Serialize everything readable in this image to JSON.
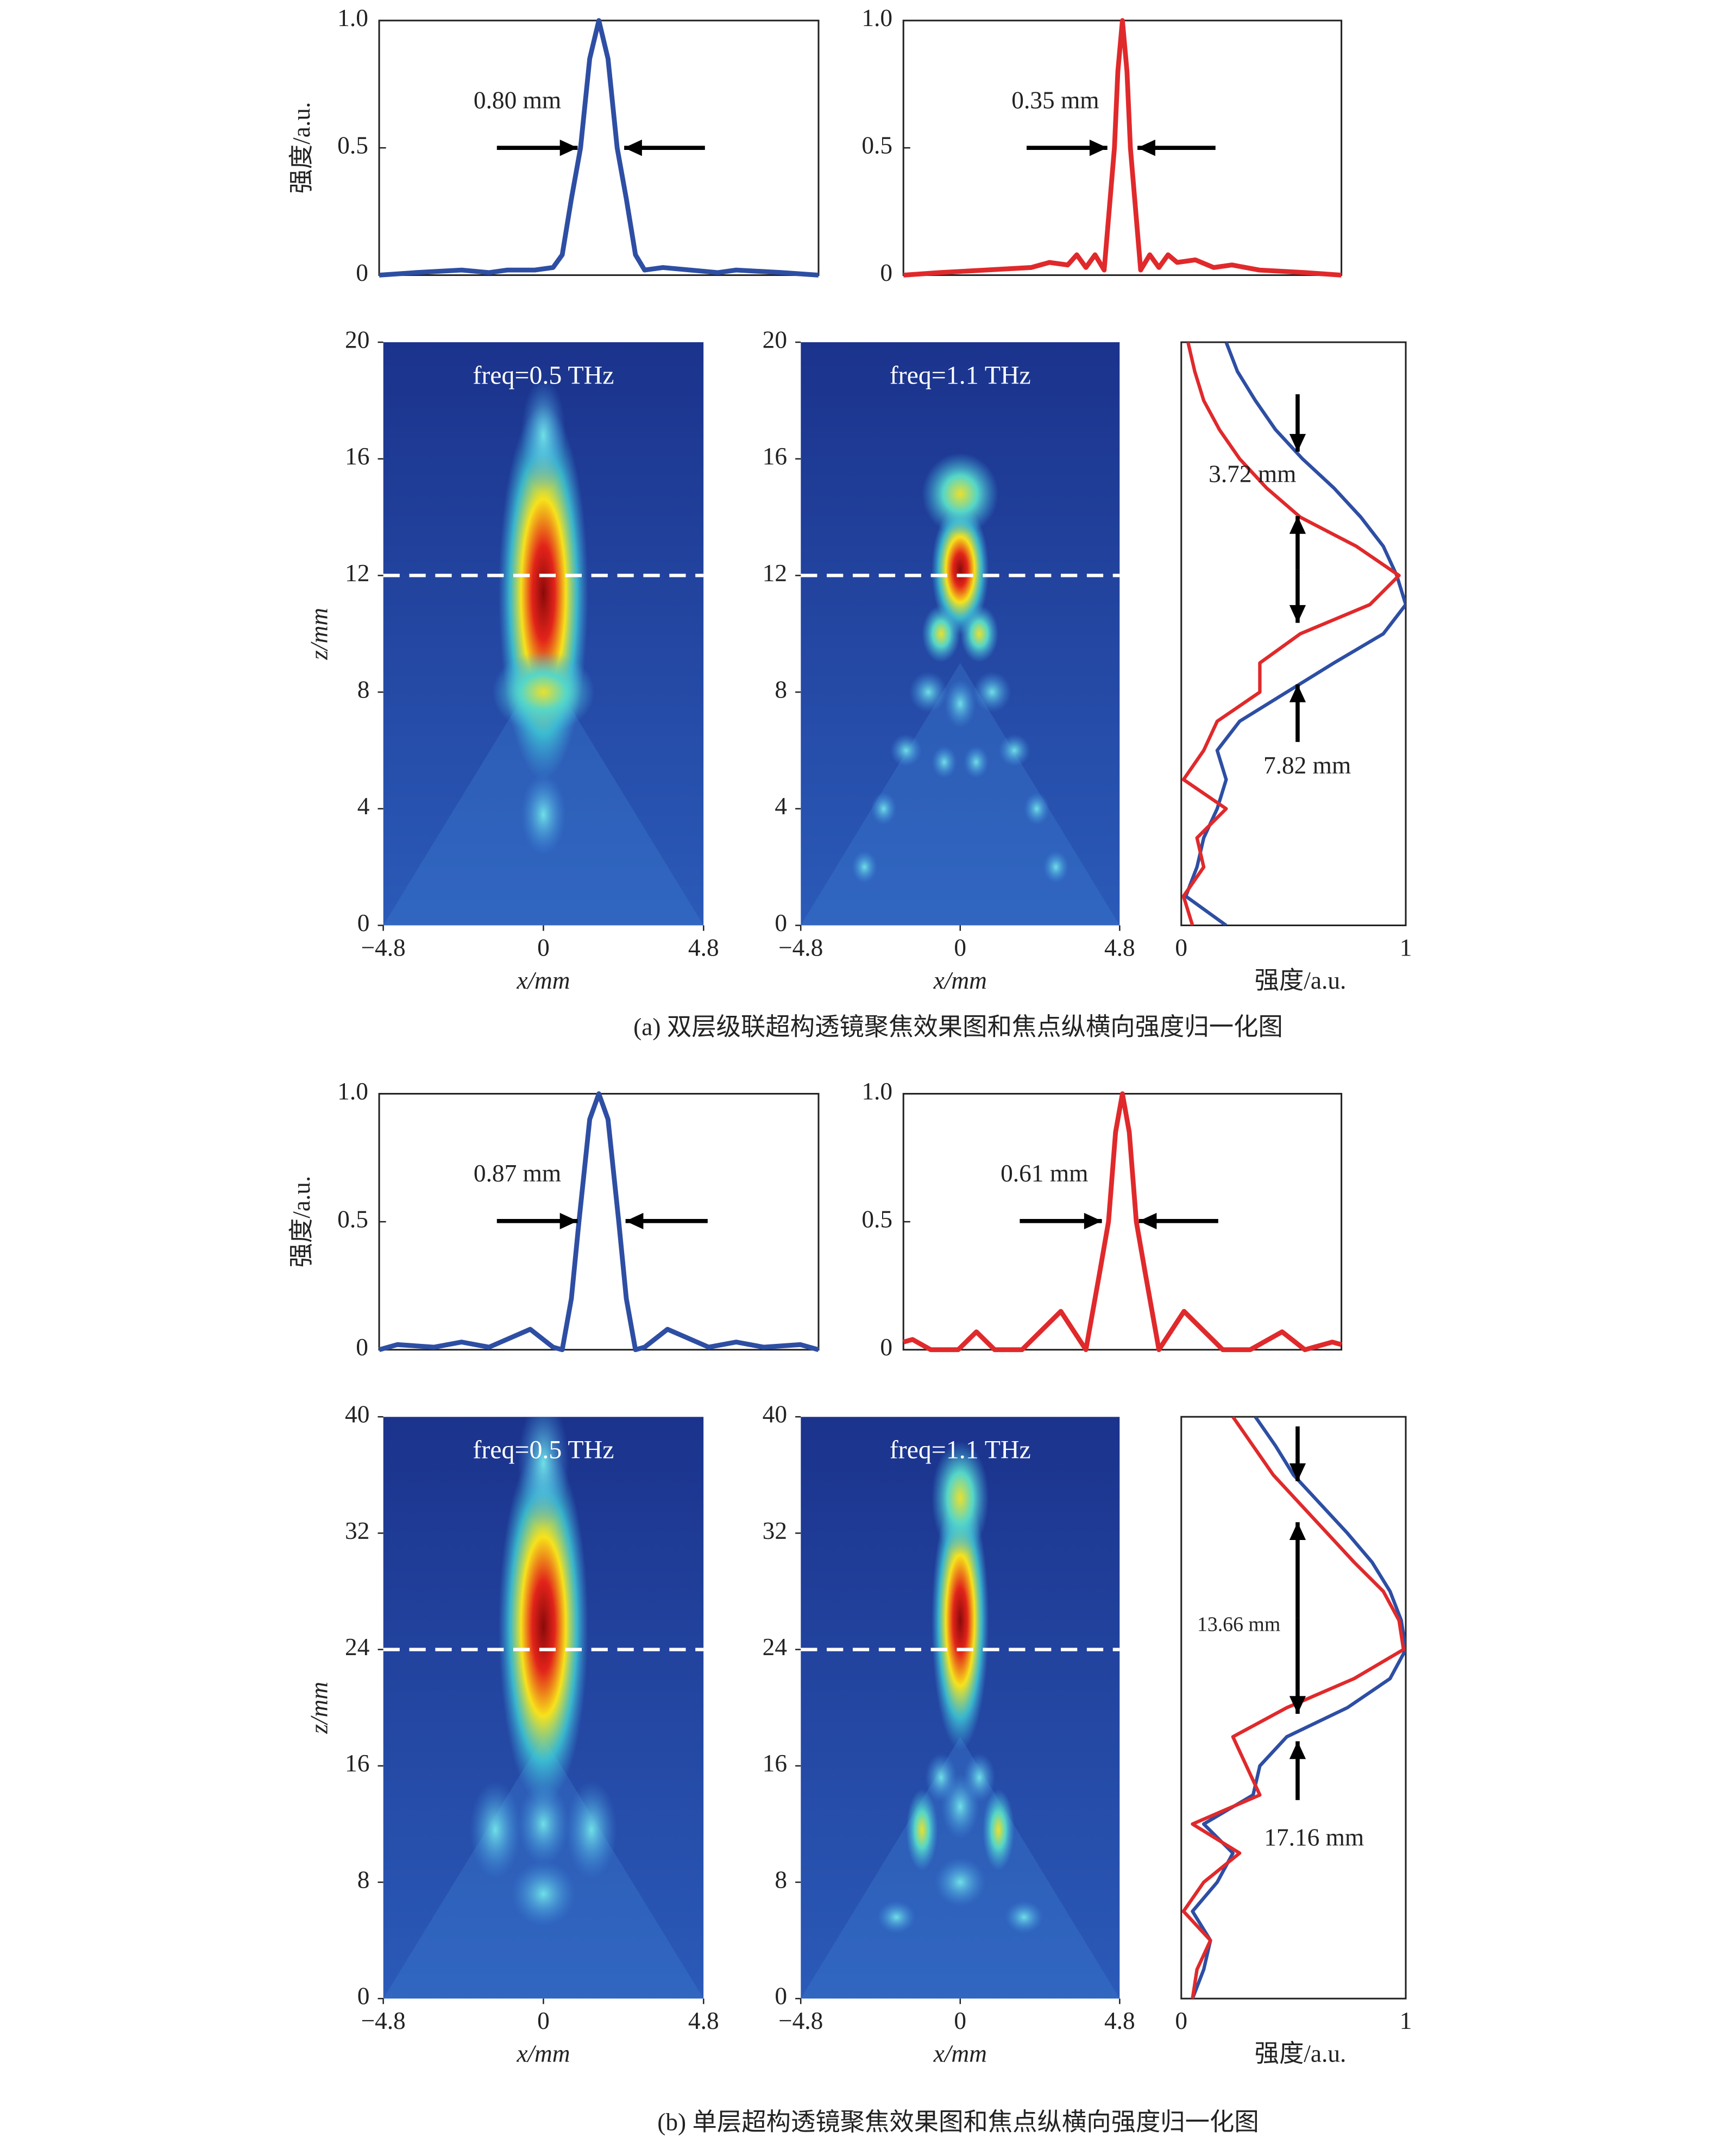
{
  "chart_data": [
    {
      "type": "line",
      "ylabel": "强度/a.u.",
      "xlim": [
        -4.8,
        4.8
      ],
      "ylim": [
        0,
        1
      ],
      "yticks": [
        0,
        0.5,
        {
          "value": 1,
          "label": "1.0"
        }
      ],
      "x": [
        -4.8,
        -4,
        -3,
        -2.4,
        -2,
        -1.4,
        -1,
        -0.8,
        -0.6,
        -0.4,
        -0.2,
        0,
        0.2,
        0.4,
        0.6,
        0.8,
        1,
        1.4,
        2,
        2.6,
        3,
        4,
        4.8
      ],
      "series": [
        {
          "color": "#2d4ea3",
          "values": [
            0,
            0.01,
            0.02,
            0.01,
            0.02,
            0.02,
            0.03,
            0.08,
            0.3,
            0.5,
            0.85,
            1,
            0.85,
            0.5,
            0.3,
            0.08,
            0.02,
            0.03,
            0.02,
            0.01,
            0.02,
            0.01,
            0
          ]
        }
      ],
      "annotations": [
        "0.80 mm"
      ]
    },
    {
      "type": "line",
      "xlim": [
        -4.8,
        4.8
      ],
      "ylim": [
        0,
        1
      ],
      "yticks": [
        0,
        0.5,
        {
          "value": 1,
          "label": "1.0"
        }
      ],
      "x": [
        -4.8,
        -4,
        -3,
        -2,
        -1.6,
        -1.2,
        -1,
        -0.8,
        -0.6,
        -0.4,
        -0.175,
        -0.1,
        0,
        0.1,
        0.175,
        0.4,
        0.6,
        0.8,
        1,
        1.2,
        1.6,
        2,
        2.4,
        3,
        4,
        4.8
      ],
      "series": [
        {
          "color": "#e0292b",
          "values": [
            0,
            0.01,
            0.02,
            0.03,
            0.05,
            0.04,
            0.08,
            0.03,
            0.08,
            0.02,
            0.5,
            0.8,
            1,
            0.8,
            0.5,
            0.02,
            0.08,
            0.03,
            0.08,
            0.05,
            0.06,
            0.03,
            0.04,
            0.02,
            0.01,
            0
          ]
        }
      ],
      "annotations": [
        "0.35 mm"
      ]
    },
    {
      "type": "heatmap",
      "title": "freq=0.5 THz",
      "xlabel": "x/mm",
      "ylabel": "z/mm",
      "xlim": [
        -4.8,
        4.8
      ],
      "ylim": [
        0,
        20
      ],
      "xticks": [
        {
          "value": -4.8,
          "label": "−4.8"
        },
        0,
        4.8
      ],
      "yticks": [
        0,
        4,
        8,
        12,
        16,
        20
      ],
      "focus_z": 12
    },
    {
      "type": "heatmap",
      "title": "freq=1.1 THz",
      "xlabel": "x/mm",
      "xlim": [
        -4.8,
        4.8
      ],
      "ylim": [
        0,
        20
      ],
      "xticks": [
        {
          "value": -4.8,
          "label": "−4.8"
        },
        0,
        4.8
      ],
      "yticks": [
        0,
        4,
        8,
        12,
        16,
        20
      ],
      "focus_z": 12
    },
    {
      "type": "profile",
      "xlabel": "强度/a.u.",
      "xlim": [
        0,
        1
      ],
      "ylim": [
        0,
        20
      ],
      "xticks": [
        0,
        1
      ],
      "y": [
        0,
        1,
        2,
        3,
        4,
        5,
        6,
        7,
        8,
        9,
        10,
        11,
        12,
        13,
        14,
        15,
        16,
        17,
        18,
        19,
        20
      ],
      "series": [
        {
          "color": "#2d4ea3",
          "values": [
            0.2,
            0.02,
            0.07,
            0.1,
            0.16,
            0.2,
            0.16,
            0.26,
            0.47,
            0.68,
            0.9,
            1,
            0.96,
            0.9,
            0.8,
            0.68,
            0.54,
            0.42,
            0.33,
            0.25,
            0.2
          ]
        },
        {
          "color": "#e0292b",
          "values": [
            0.05,
            0.01,
            0.1,
            0.07,
            0.2,
            0.01,
            0.1,
            0.16,
            0.35,
            0.35,
            0.53,
            0.84,
            0.97,
            0.78,
            0.53,
            0.38,
            0.26,
            0.17,
            0.1,
            0.06,
            0.03
          ]
        }
      ],
      "annotations": [
        "3.72 mm",
        "7.82 mm"
      ]
    },
    {
      "type": "line",
      "ylabel": "强度/a.u.",
      "xlim": [
        -4.8,
        4.8
      ],
      "ylim": [
        0,
        1
      ],
      "yticks": [
        0,
        0.5,
        {
          "value": 1,
          "label": "1.0"
        }
      ],
      "x": [
        -4.8,
        -4.4,
        -3.6,
        -3,
        -2.4,
        -1.5,
        -1,
        -0.8,
        -0.6,
        -0.435,
        -0.2,
        0,
        0.2,
        0.435,
        0.6,
        0.8,
        1,
        1.5,
        2.4,
        3,
        3.6,
        4.4,
        4.8
      ],
      "series": [
        {
          "color": "#2d4ea3",
          "values": [
            0,
            0.02,
            0.01,
            0.03,
            0.01,
            0.08,
            0.01,
            0,
            0.2,
            0.5,
            0.9,
            1,
            0.9,
            0.5,
            0.2,
            0,
            0.01,
            0.08,
            0.01,
            0.03,
            0.01,
            0.02,
            0
          ]
        }
      ],
      "annotations": [
        "0.87 mm"
      ]
    },
    {
      "type": "line",
      "xlim": [
        -4.8,
        4.8
      ],
      "ylim": [
        0,
        1
      ],
      "yticks": [
        0,
        0.5,
        {
          "value": 1,
          "label": "1.0"
        }
      ],
      "x": [
        -4.8,
        -4.6,
        -4.2,
        -3.6,
        -3.2,
        -2.8,
        -2.2,
        -1.35,
        -0.8,
        -0.5,
        -0.305,
        -0.15,
        0,
        0.15,
        0.305,
        0.5,
        0.8,
        1.35,
        2.2,
        2.8,
        3.5,
        4,
        4.6,
        4.8
      ],
      "series": [
        {
          "color": "#e0292b",
          "values": [
            0.03,
            0.04,
            0,
            0,
            0.07,
            0,
            0,
            0.15,
            0,
            0.3,
            0.5,
            0.85,
            1,
            0.85,
            0.5,
            0.3,
            0,
            0.15,
            0,
            0,
            0.07,
            0,
            0.03,
            0.02
          ]
        }
      ],
      "annotations": [
        "0.61 mm"
      ]
    },
    {
      "type": "heatmap",
      "title": "freq=0.5 THz",
      "xlabel": "x/mm",
      "ylabel": "z/mm",
      "xlim": [
        -4.8,
        4.8
      ],
      "ylim": [
        0,
        40
      ],
      "xticks": [
        {
          "value": -4.8,
          "label": "−4.8"
        },
        0,
        4.8
      ],
      "yticks": [
        0,
        8,
        16,
        24,
        32,
        40
      ],
      "focus_z": 24
    },
    {
      "type": "heatmap",
      "title": "freq=1.1 THz",
      "xlabel": "x/mm",
      "xlim": [
        -4.8,
        4.8
      ],
      "ylim": [
        0,
        40
      ],
      "xticks": [
        {
          "value": -4.8,
          "label": "−4.8"
        },
        0,
        4.8
      ],
      "yticks": [
        0,
        8,
        16,
        24,
        32,
        40
      ],
      "focus_z": 24
    },
    {
      "type": "profile",
      "xlabel": "强度/a.u.",
      "xlim": [
        0,
        1
      ],
      "ylim": [
        0,
        40
      ],
      "xticks": [
        0,
        1
      ],
      "y": [
        0,
        2,
        4,
        6,
        8,
        10,
        12,
        14,
        16,
        18,
        20,
        22,
        24,
        26,
        28,
        30,
        32,
        34,
        36,
        38,
        40
      ],
      "series": [
        {
          "color": "#2d4ea3",
          "values": [
            0.05,
            0.1,
            0.13,
            0.05,
            0.16,
            0.23,
            0.1,
            0.32,
            0.35,
            0.47,
            0.74,
            0.93,
            1,
            0.98,
            0.93,
            0.85,
            0.74,
            0.62,
            0.5,
            0.42,
            0.33
          ]
        },
        {
          "color": "#e0292b",
          "values": [
            0.05,
            0.07,
            0.13,
            0.01,
            0.1,
            0.26,
            0.05,
            0.35,
            0.29,
            0.23,
            0.47,
            0.77,
            0.99,
            0.97,
            0.9,
            0.77,
            0.65,
            0.53,
            0.41,
            0.32,
            0.23
          ]
        }
      ],
      "annotations": [
        "13.66 mm",
        "17.16 mm"
      ]
    }
  ],
  "captions": [
    "(a) 双层级联超构透镜聚焦效果图和焦点纵横向强度归一化图",
    "(b) 单层超构透镜聚焦效果图和焦点纵横向强度归一化图"
  ]
}
